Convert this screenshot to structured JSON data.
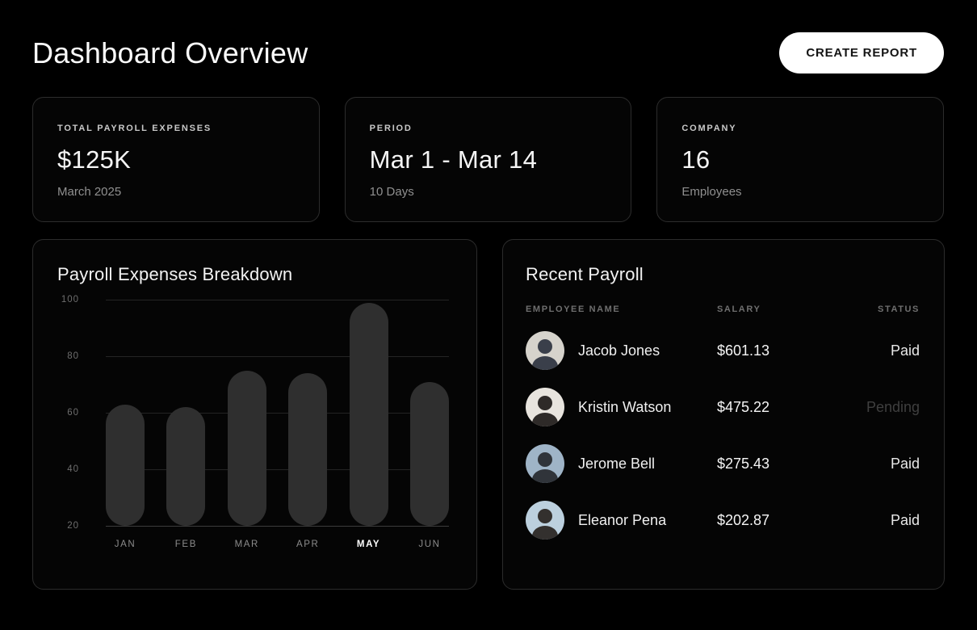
{
  "page": {
    "title": "Dashboard Overview"
  },
  "toolbar": {
    "create_report_label": "CREATE REPORT"
  },
  "stats": [
    {
      "label": "TOTAL PAYROLL EXPENSES",
      "value": "$125K",
      "sub": "March 2025"
    },
    {
      "label": "PERIOD",
      "value": "Mar 1 - Mar 14",
      "sub": "10 Days"
    },
    {
      "label": "COMPANY",
      "value": "16",
      "sub": "Employees"
    }
  ],
  "chart_data": {
    "type": "bar",
    "title": "Payroll Expenses Breakdown",
    "categories": [
      "JAN",
      "FEB",
      "MAR",
      "APR",
      "MAY",
      "JUN"
    ],
    "values": [
      63,
      62,
      75,
      74,
      99,
      71
    ],
    "highlight_index": 4,
    "xlabel": "",
    "ylabel": "",
    "ylim": [
      20,
      100
    ],
    "yticks": [
      100,
      80,
      60,
      40,
      20
    ],
    "grid": true,
    "legend": "none",
    "bar_color": "#2f2f2f"
  },
  "payroll": {
    "title": "Recent Payroll",
    "columns": [
      "EMPLOYEE NAME",
      "SALARY",
      "STATUS"
    ],
    "rows": [
      {
        "name": "Jacob Jones",
        "salary": "$601.13",
        "status": "Paid",
        "avatar": {
          "bg": "#d6d3cc",
          "fg": "#3a3f4a"
        }
      },
      {
        "name": "Kristin Watson",
        "salary": "$475.22",
        "status": "Pending",
        "avatar": {
          "bg": "#e8e4de",
          "fg": "#2e2a28"
        }
      },
      {
        "name": "Jerome Bell",
        "salary": "$275.43",
        "status": "Paid",
        "avatar": {
          "bg": "#9fb4c7",
          "fg": "#30343a"
        }
      },
      {
        "name": "Eleanor Pena",
        "salary": "$202.87",
        "status": "Paid",
        "avatar": {
          "bg": "#bcd0de",
          "fg": "#33302e"
        }
      }
    ]
  },
  "colors": {
    "page_bg": "#000000",
    "card_bg": "#050505",
    "card_border": "#2c2c2c",
    "bar_color": "#2f2f2f",
    "gridline": "#242424",
    "baseline": "#3c3c3c",
    "text_primary": "#f5f5f5",
    "text_muted": "#8f8f8f",
    "status_paid": "#e8e8e8",
    "status_pending": "#3f3f3f",
    "button_bg": "#ffffff",
    "button_text": "#141414"
  }
}
